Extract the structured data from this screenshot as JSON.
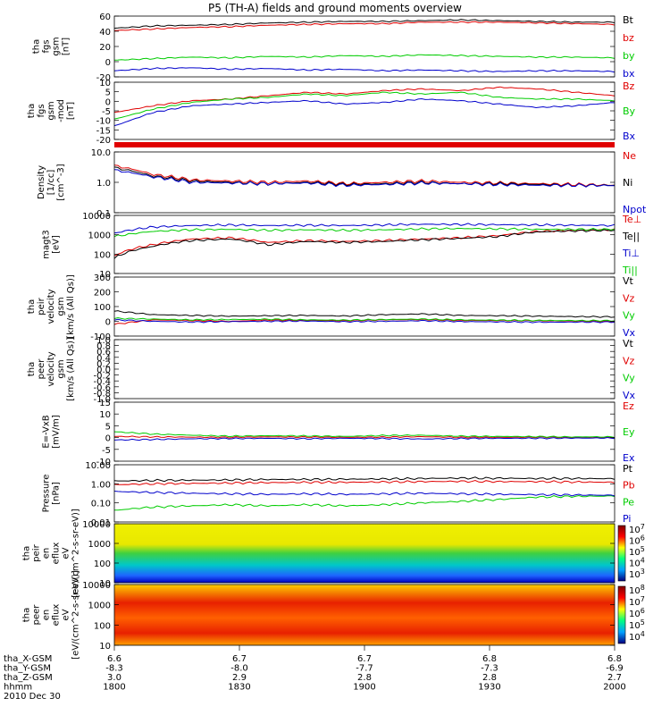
{
  "title": "P5 (TH-A) fields and ground moments overview",
  "colors": {
    "black": "#000000",
    "red": "#e00000",
    "green": "#00cc00",
    "blue": "#0000cc",
    "frame": "#000000"
  },
  "chart_data": [
    {
      "type": "line",
      "id": "p1",
      "ylabel": [
        "tha",
        "fgs",
        "gsm",
        "[nT]"
      ],
      "ylim": [
        -20,
        60
      ],
      "ticks": [
        "60",
        "40",
        "20",
        "0",
        "-20"
      ],
      "legend": [
        "Bt",
        "bz",
        "by",
        "bx"
      ],
      "legend_colors": [
        "black",
        "red",
        "green",
        "blue"
      ],
      "series": [
        {
          "name": "Bt",
          "color": "black",
          "values": [
            44,
            47,
            48,
            49,
            51,
            52,
            53,
            53,
            54,
            55,
            54,
            53,
            52,
            52
          ]
        },
        {
          "name": "bz",
          "color": "red",
          "values": [
            41,
            43,
            45,
            46,
            48,
            49,
            50,
            50,
            52,
            52,
            52,
            51,
            50,
            49
          ]
        },
        {
          "name": "by",
          "color": "green",
          "values": [
            2,
            4,
            6,
            5,
            7,
            6,
            8,
            7,
            9,
            8,
            7,
            6,
            6,
            5
          ]
        },
        {
          "name": "bx",
          "color": "blue",
          "values": [
            -12,
            -9,
            -8,
            -10,
            -9,
            -11,
            -10,
            -12,
            -11,
            -12,
            -13,
            -12,
            -12,
            -13
          ]
        }
      ]
    },
    {
      "type": "line",
      "id": "p2",
      "ylabel": [
        "tha",
        "fgs",
        "gsm",
        "-mod",
        "[nT]"
      ],
      "ylim": [
        -22,
        12
      ],
      "ticks": [
        "10",
        "5",
        "0",
        "-5",
        "-10",
        "-15",
        "-20"
      ],
      "legend": [
        "Bz",
        "By",
        "Bx"
      ],
      "legend_colors": [
        "red",
        "green",
        "blue"
      ],
      "series": [
        {
          "name": "Bz",
          "color": "red",
          "values": [
            -6,
            -2,
            1,
            2,
            4,
            6,
            5,
            7,
            8,
            7,
            9,
            8,
            6,
            4
          ]
        },
        {
          "name": "By",
          "color": "green",
          "values": [
            -10,
            -4,
            0,
            2,
            3,
            5,
            4,
            6,
            5,
            6,
            3,
            2,
            2,
            1
          ]
        },
        {
          "name": "Bx",
          "color": "blue",
          "values": [
            -14,
            -6,
            -2,
            -1,
            0,
            1,
            -1,
            0,
            2,
            1,
            -1,
            -3,
            -2,
            0
          ]
        }
      ]
    },
    {
      "type": "log",
      "id": "p3",
      "ylabel": [
        "Density",
        "[1/cc]",
        "[cm^-3]"
      ],
      "ylim": [
        0.1,
        10
      ],
      "ticks": [
        "10.0",
        "1.0",
        "0.1"
      ],
      "legend": [
        "Ne",
        "Ni",
        "Npot"
      ],
      "legend_colors": [
        "red",
        "black",
        "blue"
      ],
      "series": [
        {
          "name": "Ne",
          "color": "red",
          "values": [
            3.5,
            1.8,
            1.2,
            1.1,
            1.0,
            1.1,
            0.9,
            1.0,
            1.1,
            1.0,
            0.95,
            0.9,
            0.85,
            0.8
          ]
        },
        {
          "name": "Ni",
          "color": "black",
          "values": [
            3.0,
            1.6,
            1.1,
            1.0,
            0.9,
            1.0,
            0.85,
            0.9,
            1.0,
            0.9,
            0.9,
            0.85,
            0.8,
            0.8
          ]
        },
        {
          "name": "Npot",
          "color": "blue",
          "values": [
            2.5,
            1.5,
            1.0,
            0.95,
            0.9,
            0.95,
            0.8,
            0.85,
            0.95,
            0.9,
            0.85,
            0.8,
            0.8,
            0.78
          ]
        }
      ]
    },
    {
      "type": "log",
      "id": "p4",
      "ylabel": [
        "magt3",
        "[eV]"
      ],
      "ylim": [
        10,
        10000
      ],
      "ticks": [
        "10000",
        "1000",
        "100",
        "10"
      ],
      "legend": [
        "Te⊥",
        "Te||",
        "Ti⊥",
        "Ti||"
      ],
      "legend_colors": [
        "red",
        "black",
        "blue",
        "green"
      ],
      "series": [
        {
          "name": "Te⊥",
          "color": "red",
          "values": [
            80,
            300,
            600,
            700,
            400,
            500,
            450,
            500,
            600,
            700,
            900,
            1500,
            1700,
            1800
          ]
        },
        {
          "name": "Te||",
          "color": "black",
          "values": [
            60,
            250,
            500,
            600,
            300,
            450,
            400,
            450,
            550,
            650,
            800,
            1400,
            1600,
            1700
          ]
        },
        {
          "name": "Ti⊥",
          "color": "blue",
          "values": [
            1200,
            2500,
            3000,
            3200,
            3000,
            3100,
            3000,
            3200,
            3500,
            3400,
            3300,
            3200,
            3100,
            3000
          ]
        },
        {
          "name": "Ti||",
          "color": "green",
          "values": [
            800,
            1500,
            1800,
            1900,
            1700,
            1800,
            1700,
            1800,
            2000,
            2100,
            2000,
            1900,
            1900,
            1900
          ]
        }
      ]
    },
    {
      "type": "line",
      "id": "p5",
      "ylabel": [
        "tha",
        "peir",
        "velocity",
        "gsm",
        "[km/s (All Qs)]"
      ],
      "ylim": [
        -100,
        300
      ],
      "ticks": [
        "300",
        "200",
        "100",
        "0",
        "-100"
      ],
      "legend": [
        "Vt",
        "Vz",
        "Vy",
        "Vx"
      ],
      "legend_colors": [
        "black",
        "red",
        "green",
        "blue"
      ],
      "series": [
        {
          "name": "Vt",
          "color": "black",
          "values": [
            70,
            45,
            40,
            35,
            38,
            40,
            36,
            45,
            50,
            40,
            38,
            35,
            32,
            30
          ]
        },
        {
          "name": "Vz",
          "color": "red",
          "values": [
            -20,
            10,
            5,
            0,
            8,
            6,
            4,
            10,
            12,
            6,
            5,
            4,
            2,
            0
          ]
        },
        {
          "name": "Vy",
          "color": "green",
          "values": [
            20,
            15,
            10,
            12,
            14,
            10,
            8,
            12,
            15,
            10,
            8,
            6,
            5,
            4
          ]
        },
        {
          "name": "Vx",
          "color": "blue",
          "values": [
            10,
            0,
            -5,
            -2,
            0,
            2,
            -3,
            0,
            4,
            -2,
            -4,
            -6,
            -5,
            -5
          ]
        }
      ]
    },
    {
      "type": "empty",
      "id": "p6",
      "ylabel": [
        "tha",
        "peer",
        "velocity",
        "gsm",
        "[km/s (All Qs)]"
      ],
      "ylim": [
        -1,
        1
      ],
      "ticks": [
        "1.0",
        "0.8",
        "0.6",
        "0.4",
        "0.2",
        "0.0",
        "-0.2",
        "-0.4",
        "-0.6",
        "-0.8",
        "-1.0"
      ],
      "legend": [
        "Vt",
        "Vz",
        "Vy",
        "Vx"
      ],
      "legend_colors": [
        "black",
        "red",
        "green",
        "blue"
      ],
      "series": []
    },
    {
      "type": "line",
      "id": "p7",
      "ylabel": [
        "E=-VxB",
        "[mV/m]"
      ],
      "ylim": [
        -10,
        15
      ],
      "ticks": [
        "15",
        "10",
        "5",
        "0",
        "-5",
        "-10"
      ],
      "legend": [
        "Ez",
        "Ey",
        "Ex"
      ],
      "legend_colors": [
        "red",
        "green",
        "blue"
      ],
      "series": [
        {
          "name": "Ez",
          "color": "red",
          "values": [
            0.5,
            0.3,
            0.2,
            0.1,
            0.3,
            0.2,
            0.1,
            0.2,
            0.4,
            0.1,
            0.1,
            0.2,
            0.1,
            0.1
          ]
        },
        {
          "name": "Ey",
          "color": "green",
          "values": [
            2.5,
            1.5,
            1.0,
            0.6,
            0.8,
            0.7,
            0.5,
            0.9,
            1.0,
            0.6,
            0.5,
            0.4,
            0.3,
            0.3
          ]
        },
        {
          "name": "Ex",
          "color": "blue",
          "values": [
            -1.0,
            -0.8,
            -0.5,
            -0.4,
            -0.3,
            -0.5,
            -0.3,
            -0.4,
            -0.6,
            -0.4,
            -0.3,
            -0.3,
            -0.2,
            -0.2
          ]
        }
      ]
    },
    {
      "type": "log",
      "id": "p8",
      "ylabel": [
        "Pressure",
        "[nPa]"
      ],
      "ylim": [
        0.01,
        10
      ],
      "ticks": [
        "10.00",
        "1.00",
        "0.10",
        "0.01"
      ],
      "legend": [
        "Pt",
        "Pb",
        "Pe",
        "Pi"
      ],
      "legend_colors": [
        "black",
        "red",
        "green",
        "blue"
      ],
      "series": [
        {
          "name": "Pt",
          "color": "black",
          "values": [
            1.4,
            1.5,
            1.55,
            1.6,
            1.7,
            1.7,
            1.75,
            1.8,
            1.9,
            2.0,
            1.95,
            1.9,
            1.9,
            1.85
          ]
        },
        {
          "name": "Pb",
          "color": "red",
          "values": [
            0.9,
            1.0,
            1.05,
            1.1,
            1.15,
            1.2,
            1.2,
            1.25,
            1.3,
            1.35,
            1.3,
            1.3,
            1.25,
            1.2
          ]
        },
        {
          "name": "Pe",
          "color": "green",
          "values": [
            0.04,
            0.06,
            0.07,
            0.08,
            0.07,
            0.08,
            0.07,
            0.08,
            0.1,
            0.12,
            0.15,
            0.2,
            0.22,
            0.23
          ]
        },
        {
          "name": "Pi",
          "color": "blue",
          "values": [
            0.4,
            0.35,
            0.32,
            0.3,
            0.28,
            0.3,
            0.28,
            0.3,
            0.32,
            0.3,
            0.28,
            0.27,
            0.26,
            0.25
          ]
        }
      ]
    },
    {
      "type": "heatmap",
      "id": "p9",
      "ylabel": [
        "tha",
        "peir",
        "en",
        "eflux",
        "eV",
        "[eV/(cm^2-s-sr-eV)]"
      ],
      "ylim": [
        10,
        20000
      ],
      "ticks": [
        "10000",
        "1000",
        "100",
        "10"
      ],
      "colorbar_ticks": [
        "10^7",
        "10^6",
        "10^5",
        "10^4",
        "10^3"
      ]
    },
    {
      "type": "heatmap",
      "id": "p10",
      "ylabel": [
        "tha",
        "peer",
        "en",
        "eflux",
        "eV",
        "[eV/(cm^2-s-sr-eV)]"
      ],
      "ylim": [
        10,
        20000
      ],
      "ticks": [
        "10000",
        "1000",
        "100",
        "10"
      ],
      "colorbar_ticks": [
        "10^8",
        "10^7",
        "10^6",
        "10^5",
        "10^4"
      ]
    }
  ],
  "xaxis": {
    "rows": [
      {
        "label": "tha_X-GSM",
        "values": [
          "6.6",
          "6.7",
          "6.7",
          "6.8",
          "6.8"
        ]
      },
      {
        "label": "tha_Y-GSM",
        "values": [
          "-8.3",
          "-8.0",
          "-7.7",
          "-7.3",
          "-6.9"
        ]
      },
      {
        "label": "tha_Z-GSM",
        "values": [
          "3.0",
          "2.9",
          "2.8",
          "2.8",
          "2.7"
        ]
      },
      {
        "label": "hhmm",
        "values": [
          "1800",
          "1830",
          "1900",
          "1930",
          "2000"
        ]
      }
    ],
    "date": "2010 Dec 30"
  }
}
